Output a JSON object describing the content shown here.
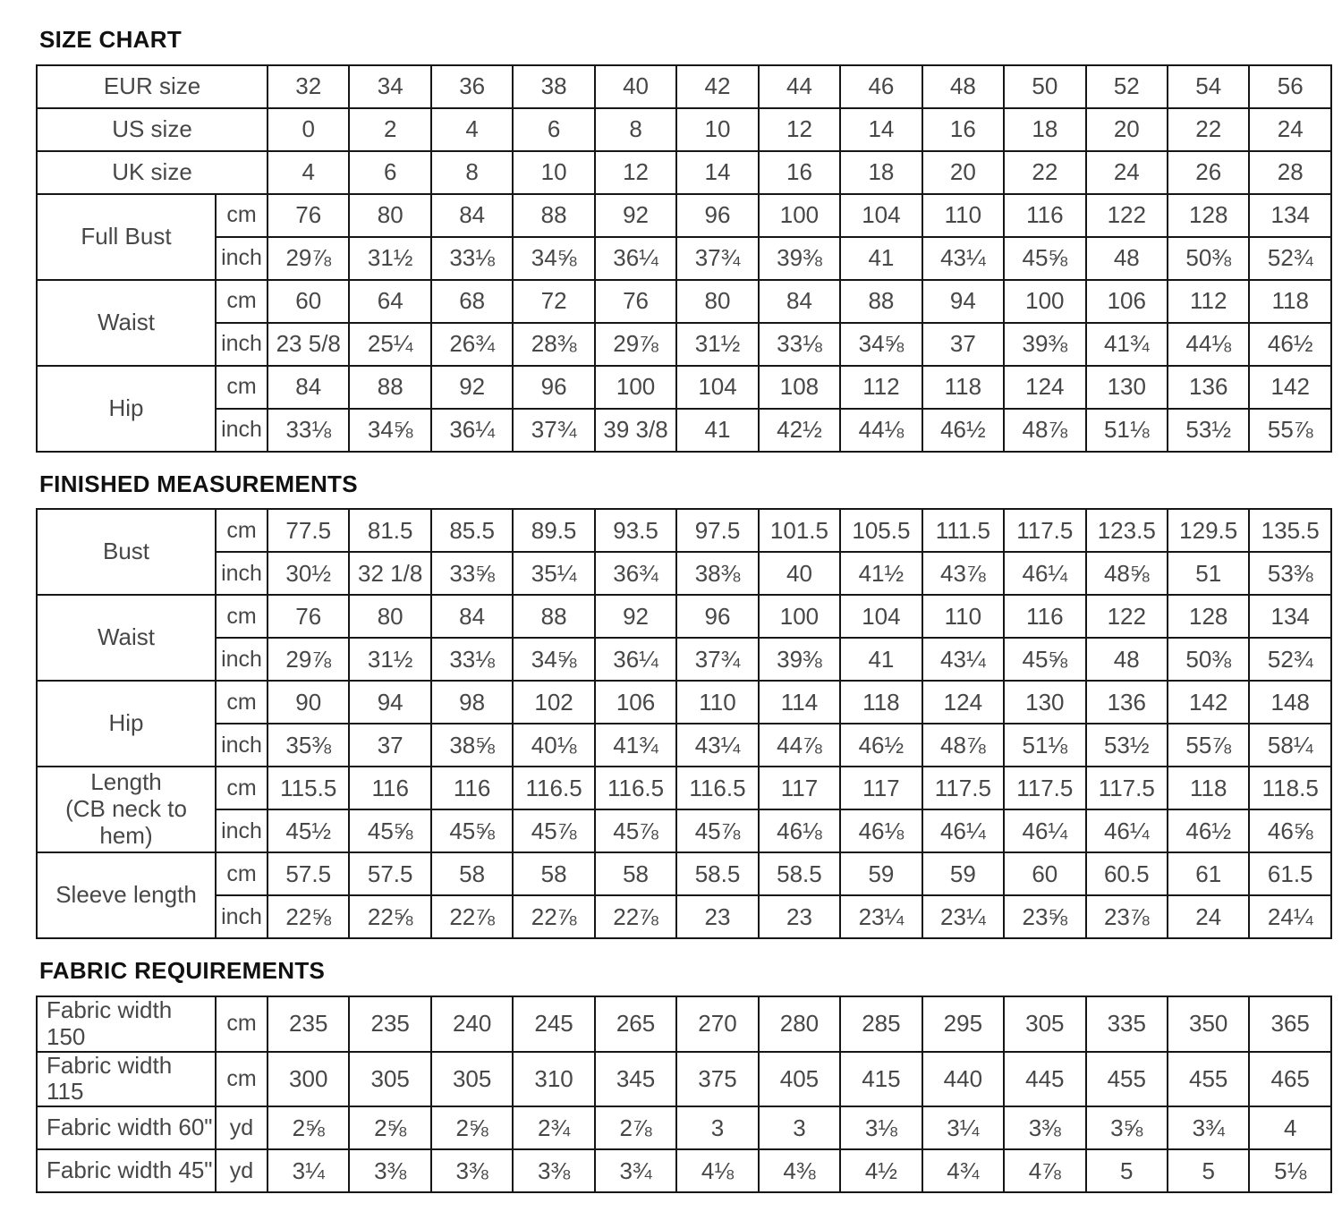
{
  "styles": {
    "background": "#ffffff",
    "title_color": "#111111",
    "cell_text_color": "#474747",
    "border_color": "#161616"
  },
  "sections": [
    {
      "title": "SIZE CHART",
      "groups": [
        {
          "label": "EUR size",
          "rows": [
            {
              "unit": null,
              "values": [
                "32",
                "34",
                "36",
                "38",
                "40",
                "42",
                "44",
                "46",
                "48",
                "50",
                "52",
                "54",
                "56"
              ]
            }
          ]
        },
        {
          "label": "US size",
          "rows": [
            {
              "unit": null,
              "values": [
                "0",
                "2",
                "4",
                "6",
                "8",
                "10",
                "12",
                "14",
                "16",
                "18",
                "20",
                "22",
                "24"
              ]
            }
          ]
        },
        {
          "label": "UK size",
          "rows": [
            {
              "unit": null,
              "values": [
                "4",
                "6",
                "8",
                "10",
                "12",
                "14",
                "16",
                "18",
                "20",
                "22",
                "24",
                "26",
                "28"
              ]
            }
          ]
        },
        {
          "label": "Full Bust",
          "rows": [
            {
              "unit": "cm",
              "values": [
                "76",
                "80",
                "84",
                "88",
                "92",
                "96",
                "100",
                "104",
                "110",
                "116",
                "122",
                "128",
                "134"
              ]
            },
            {
              "unit": "inch",
              "values": [
                "29⅞",
                "31½",
                "33⅛",
                "34⅝",
                "36¼",
                "37¾",
                "39⅜",
                "41",
                "43¼",
                "45⅝",
                "48",
                "50⅜",
                "52¾"
              ]
            }
          ]
        },
        {
          "label": "Waist",
          "rows": [
            {
              "unit": "cm",
              "values": [
                "60",
                "64",
                "68",
                "72",
                "76",
                "80",
                "84",
                "88",
                "94",
                "100",
                "106",
                "112",
                "118"
              ]
            },
            {
              "unit": "inch",
              "values": [
                "23 5/8",
                "25¼",
                "26¾",
                "28⅜",
                "29⅞",
                "31½",
                "33⅛",
                "34⅝",
                "37",
                "39⅜",
                "41¾",
                "44⅛",
                "46½"
              ]
            }
          ]
        },
        {
          "label": "Hip",
          "rows": [
            {
              "unit": "cm",
              "values": [
                "84",
                "88",
                "92",
                "96",
                "100",
                "104",
                "108",
                "112",
                "118",
                "124",
                "130",
                "136",
                "142"
              ]
            },
            {
              "unit": "inch",
              "values": [
                "33⅛",
                "34⅝",
                "36¼",
                "37¾",
                "39 3/8",
                "41",
                "42½",
                "44⅛",
                "46½",
                "48⅞",
                "51⅛",
                "53½",
                "55⅞"
              ]
            }
          ]
        }
      ]
    },
    {
      "title": "FINISHED MEASUREMENTS",
      "groups": [
        {
          "label": "Bust",
          "rows": [
            {
              "unit": "cm",
              "values": [
                "77.5",
                "81.5",
                "85.5",
                "89.5",
                "93.5",
                "97.5",
                "101.5",
                "105.5",
                "111.5",
                "117.5",
                "123.5",
                "129.5",
                "135.5"
              ]
            },
            {
              "unit": "inch",
              "values": [
                "30½",
                "32 1/8",
                "33⅝",
                "35¼",
                "36¾",
                "38⅜",
                "40",
                "41½",
                "43⅞",
                "46¼",
                "48⅝",
                "51",
                "53⅜"
              ]
            }
          ]
        },
        {
          "label": "Waist",
          "rows": [
            {
              "unit": "cm",
              "values": [
                "76",
                "80",
                "84",
                "88",
                "92",
                "96",
                "100",
                "104",
                "110",
                "116",
                "122",
                "128",
                "134"
              ]
            },
            {
              "unit": "inch",
              "values": [
                "29⅞",
                "31½",
                "33⅛",
                "34⅝",
                "36¼",
                "37¾",
                "39⅜",
                "41",
                "43¼",
                "45⅝",
                "48",
                "50⅜",
                "52¾"
              ]
            }
          ]
        },
        {
          "label": "Hip",
          "rows": [
            {
              "unit": "cm",
              "values": [
                "90",
                "94",
                "98",
                "102",
                "106",
                "110",
                "114",
                "118",
                "124",
                "130",
                "136",
                "142",
                "148"
              ]
            },
            {
              "unit": "inch",
              "values": [
                "35⅜",
                "37",
                "38⅝",
                "40⅛",
                "41¾",
                "43¼",
                "44⅞",
                "46½",
                "48⅞",
                "51⅛",
                "53½",
                "55⅞",
                "58¼"
              ]
            }
          ]
        },
        {
          "label": "Length\n(CB neck to hem)",
          "rows": [
            {
              "unit": "cm",
              "values": [
                "115.5",
                "116",
                "116",
                "116.5",
                "116.5",
                "116.5",
                "117",
                "117",
                "117.5",
                "117.5",
                "117.5",
                "118",
                "118.5"
              ]
            },
            {
              "unit": "inch",
              "values": [
                "45½",
                "45⅝",
                "45⅝",
                "45⅞",
                "45⅞",
                "45⅞",
                "46⅛",
                "46⅛",
                "46¼",
                "46¼",
                "46¼",
                "46½",
                "46⅝"
              ]
            }
          ]
        },
        {
          "label": "Sleeve length",
          "rows": [
            {
              "unit": "cm",
              "values": [
                "57.5",
                "57.5",
                "58",
                "58",
                "58",
                "58.5",
                "58.5",
                "59",
                "59",
                "60",
                "60.5",
                "61",
                "61.5"
              ]
            },
            {
              "unit": "inch",
              "values": [
                "22⅝",
                "22⅝",
                "22⅞",
                "22⅞",
                "22⅞",
                "23",
                "23",
                "23¼",
                "23¼",
                "23⅝",
                "23⅞",
                "24",
                "24¼"
              ]
            }
          ]
        }
      ]
    },
    {
      "title": "FABRIC REQUIREMENTS",
      "groups": [
        {
          "label": "Fabric width 150",
          "rows": [
            {
              "unit": "cm",
              "values": [
                "235",
                "235",
                "240",
                "245",
                "265",
                "270",
                "280",
                "285",
                "295",
                "305",
                "335",
                "350",
                "365"
              ]
            }
          ]
        },
        {
          "label": "Fabric width 115",
          "rows": [
            {
              "unit": "cm",
              "values": [
                "300",
                "305",
                "305",
                "310",
                "345",
                "375",
                "405",
                "415",
                "440",
                "445",
                "455",
                "455",
                "465"
              ]
            }
          ]
        },
        {
          "label": "Fabric width 60\"",
          "rows": [
            {
              "unit": "yd",
              "values": [
                "2⅝",
                "2⅝",
                "2⅝",
                "2¾",
                "2⅞",
                "3",
                "3",
                "3⅛",
                "3¼",
                "3⅜",
                "3⅝",
                "3¾",
                "4"
              ]
            }
          ]
        },
        {
          "label": "Fabric width 45\"",
          "rows": [
            {
              "unit": "yd",
              "values": [
                "3¼",
                "3⅜",
                "3⅜",
                "3⅜",
                "3¾",
                "4⅛",
                "4⅜",
                "4½",
                "4¾",
                "4⅞",
                "5",
                "5",
                "5⅛"
              ]
            }
          ]
        }
      ]
    }
  ]
}
